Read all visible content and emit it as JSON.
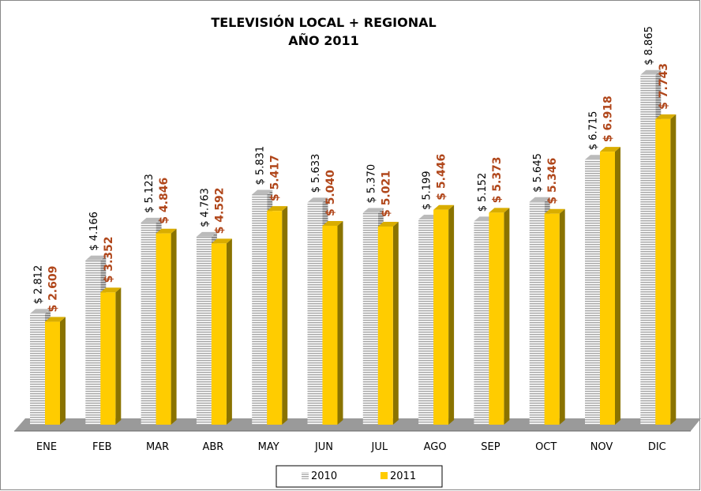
{
  "chart_data": {
    "type": "bar3d",
    "title": [
      "TELEVISIÓN LOCAL + REGIONAL",
      "AÑO 2011"
    ],
    "categories": [
      "ENE",
      "FEB",
      "MAR",
      "ABR",
      "MAY",
      "JUN",
      "JUL",
      "AGO",
      "SEP",
      "OCT",
      "NOV",
      "DIC"
    ],
    "series": [
      {
        "name": "2010",
        "color": "#c8c8c8",
        "values": [
          2.812,
          4.166,
          5.123,
          4.763,
          5.831,
          5.633,
          5.37,
          5.199,
          5.152,
          5.645,
          6.715,
          8.865
        ],
        "value_labels": [
          "$ 2.812",
          "$ 4.166",
          "$ 5.123",
          "$ 4.763",
          "$ 5.831",
          "$ 5.633",
          "$ 5.370",
          "$ 5.199",
          "$ 5.152",
          "$ 5.645",
          "$ 6.715",
          "$ 8.865"
        ]
      },
      {
        "name": "2011",
        "color": "#ffcc00",
        "values": [
          2.609,
          3.352,
          4.846,
          4.592,
          5.417,
          5.04,
          5.021,
          5.446,
          5.373,
          5.346,
          6.918,
          7.743
        ],
        "value_labels": [
          "$ 2.609",
          "$ 3.352",
          "$ 4.846",
          "$ 4.592",
          "$ 5.417",
          "$ 5.040",
          "$ 5.021",
          "$ 5.446",
          "$ 5.373",
          "$ 5.346",
          "$ 6.918",
          "$ 7.743"
        ]
      }
    ]
  }
}
